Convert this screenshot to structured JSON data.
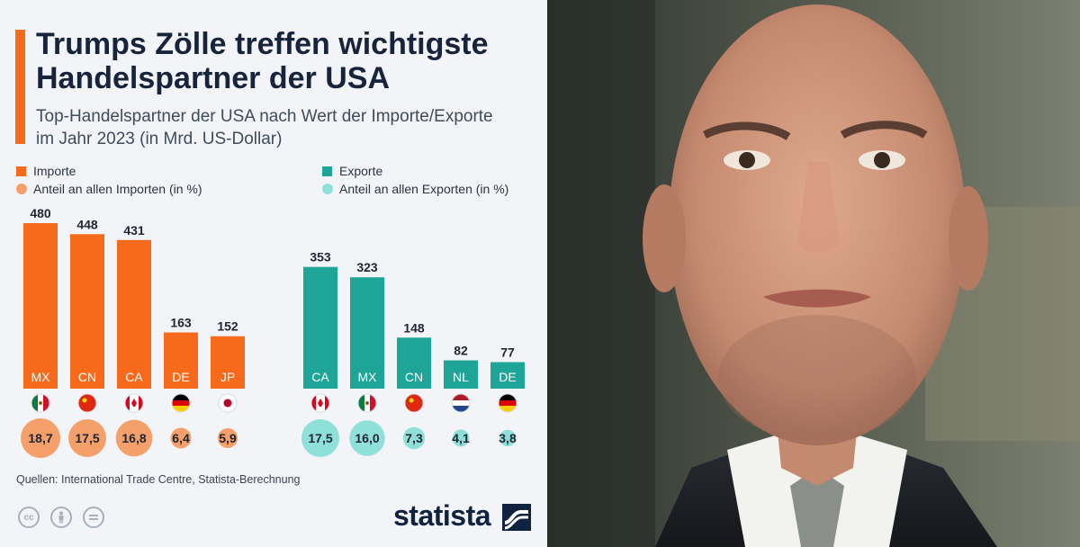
{
  "title": "Trumps Zölle treffen wichtigste Handelspartner der USA",
  "subtitle": "Top-Handelspartner der USA nach Wert der Importe/Exporte im Jahr 2023 (in Mrd. US-Dollar)",
  "legend": {
    "imports": "Importe",
    "import_share": "Anteil an allen Importen (in %)",
    "exports": "Exporte",
    "export_share": "Anteil an allen Exporten (in %)"
  },
  "source": "Quellen: International Trade Centre, Statista-Berechnung",
  "brand": "statista",
  "license_icons": [
    "cc",
    "by",
    "nd"
  ],
  "colors": {
    "imports": "#f76a1c",
    "import_share": "#f5a06a",
    "exports": "#1ea597",
    "export_share": "#8fe0d8",
    "title": "#18243c"
  },
  "chart_data": [
    {
      "type": "bar",
      "name": "Importe",
      "categories": [
        "MX",
        "CN",
        "CA",
        "DE",
        "JP"
      ],
      "values": [
        480,
        448,
        431,
        163,
        152
      ],
      "value_labels": [
        "480",
        "448",
        "431",
        "163",
        "152"
      ],
      "share_percent": [
        18.7,
        17.5,
        16.8,
        6.4,
        5.9
      ],
      "share_labels": [
        "18,7",
        "17,5",
        "16,8",
        "6,4",
        "5,9"
      ],
      "ylim": [
        0,
        480
      ]
    },
    {
      "type": "bar",
      "name": "Exporte",
      "categories": [
        "CA",
        "MX",
        "CN",
        "NL",
        "DE"
      ],
      "values": [
        353,
        323,
        148,
        82,
        77
      ],
      "value_labels": [
        "353",
        "323",
        "148",
        "82",
        "77"
      ],
      "share_percent": [
        17.5,
        16.0,
        7.3,
        4.1,
        3.8
      ],
      "share_labels": [
        "17,5",
        "16,0",
        "7,3",
        "4,1",
        "3,8"
      ],
      "ylim": [
        0,
        480
      ]
    }
  ],
  "photo": {
    "subject": "portrait-man"
  }
}
